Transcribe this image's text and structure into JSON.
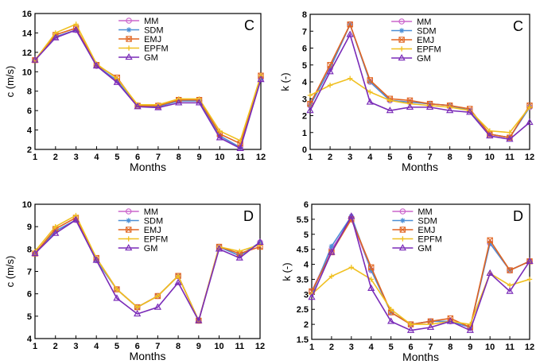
{
  "colors": {
    "MM": "#cc66cc",
    "SDM": "#4d8fd6",
    "EMJ": "#e06420",
    "EPFM": "#f0c020",
    "GM": "#7a2bb8"
  },
  "markers": {
    "MM": "circle",
    "SDM": "asterisk",
    "EMJ": "x-square",
    "EPFM": "plus",
    "GM": "triangle"
  },
  "chart_data": [
    {
      "type": "line",
      "panel_label": "C",
      "xlabel": "Months",
      "ylabel": "c (m/s)",
      "x": [
        1,
        2,
        3,
        4,
        5,
        6,
        7,
        8,
        9,
        10,
        11,
        12
      ],
      "xlim": [
        1,
        12
      ],
      "ylim": [
        2,
        16
      ],
      "yticks": [
        2,
        4,
        6,
        8,
        10,
        12,
        14,
        16
      ],
      "legend_position": "top-center",
      "series": [
        {
          "name": "MM",
          "values": [
            11.2,
            13.6,
            14.3,
            10.6,
            9.1,
            6.5,
            6.4,
            7.0,
            7.0,
            3.4,
            2.2,
            9.3
          ]
        },
        {
          "name": "SDM",
          "values": [
            11.2,
            13.6,
            14.3,
            10.6,
            9.1,
            6.5,
            6.4,
            7.0,
            7.0,
            3.4,
            2.2,
            9.3
          ]
        },
        {
          "name": "EMJ",
          "values": [
            11.2,
            13.8,
            14.5,
            10.7,
            9.4,
            6.5,
            6.5,
            7.1,
            7.1,
            3.6,
            2.6,
            9.6
          ]
        },
        {
          "name": "EPFM",
          "values": [
            11.2,
            14.0,
            14.9,
            10.8,
            9.3,
            6.6,
            6.6,
            7.2,
            7.2,
            3.9,
            2.9,
            9.6
          ]
        },
        {
          "name": "GM",
          "values": [
            11.2,
            13.5,
            14.3,
            10.6,
            8.9,
            6.4,
            6.3,
            6.8,
            6.8,
            3.2,
            2.1,
            9.2
          ]
        }
      ]
    },
    {
      "type": "line",
      "panel_label": "C",
      "xlabel": "Months",
      "ylabel": "k (-)",
      "x": [
        1,
        2,
        3,
        4,
        5,
        6,
        7,
        8,
        9,
        10,
        11,
        12
      ],
      "xlim": [
        1,
        12
      ],
      "ylim": [
        0,
        8
      ],
      "yticks": [
        0,
        1,
        2,
        3,
        4,
        5,
        6,
        7,
        8
      ],
      "legend_position": "top-center",
      "series": [
        {
          "name": "MM",
          "values": [
            2.6,
            4.8,
            7.4,
            4.0,
            2.9,
            2.8,
            2.7,
            2.6,
            2.3,
            0.9,
            0.7,
            2.5
          ]
        },
        {
          "name": "SDM",
          "values": [
            2.6,
            4.8,
            7.4,
            4.0,
            2.9,
            2.8,
            2.7,
            2.6,
            2.3,
            0.9,
            0.7,
            2.5
          ]
        },
        {
          "name": "EMJ",
          "values": [
            2.7,
            5.0,
            7.4,
            4.1,
            3.0,
            2.9,
            2.7,
            2.6,
            2.4,
            0.9,
            0.7,
            2.6
          ]
        },
        {
          "name": "EPFM",
          "values": [
            3.2,
            3.8,
            4.2,
            3.4,
            2.9,
            2.7,
            2.6,
            2.5,
            2.3,
            1.1,
            1.0,
            2.5
          ]
        },
        {
          "name": "GM",
          "values": [
            2.3,
            4.6,
            6.8,
            2.8,
            2.3,
            2.5,
            2.5,
            2.3,
            2.2,
            0.8,
            0.6,
            1.6
          ]
        }
      ]
    },
    {
      "type": "line",
      "panel_label": "D",
      "xlabel": "Months",
      "ylabel": "c (m/s)",
      "x": [
        1,
        2,
        3,
        4,
        5,
        6,
        7,
        8,
        9,
        10,
        11,
        12
      ],
      "xlim": [
        1,
        12
      ],
      "ylim": [
        4,
        10
      ],
      "yticks": [
        4,
        5,
        6,
        7,
        8,
        9,
        10
      ],
      "legend_position": "top-center",
      "series": [
        {
          "name": "MM",
          "values": [
            7.8,
            8.8,
            9.3,
            7.5,
            6.2,
            5.4,
            5.9,
            6.8,
            4.8,
            8.1,
            7.7,
            8.3
          ]
        },
        {
          "name": "SDM",
          "values": [
            7.8,
            8.8,
            9.3,
            7.5,
            6.2,
            5.4,
            5.9,
            6.8,
            4.8,
            8.1,
            7.7,
            8.3
          ]
        },
        {
          "name": "EMJ",
          "values": [
            7.8,
            8.9,
            9.4,
            7.6,
            6.2,
            5.4,
            5.9,
            6.8,
            4.8,
            8.1,
            7.8,
            8.1
          ]
        },
        {
          "name": "EPFM",
          "values": [
            7.9,
            9.0,
            9.5,
            7.6,
            6.2,
            5.4,
            5.9,
            6.8,
            4.8,
            8.1,
            7.9,
            8.2
          ]
        },
        {
          "name": "GM",
          "values": [
            7.8,
            8.7,
            9.3,
            7.5,
            5.8,
            5.1,
            5.4,
            6.5,
            4.8,
            8.0,
            7.6,
            8.3
          ]
        }
      ]
    },
    {
      "type": "line",
      "panel_label": "D",
      "xlabel": "Months",
      "ylabel": "k (-)",
      "x": [
        1,
        2,
        3,
        4,
        5,
        6,
        7,
        8,
        9,
        10,
        11,
        12
      ],
      "xlim": [
        1,
        12
      ],
      "ylim": [
        1.5,
        6
      ],
      "yticks": [
        1.5,
        2,
        2.5,
        3,
        3.5,
        4,
        4.5,
        5,
        5.5,
        6
      ],
      "legend_position": "top-center",
      "series": [
        {
          "name": "MM",
          "values": [
            3.1,
            4.5,
            5.5,
            3.8,
            2.4,
            2.0,
            2.1,
            2.1,
            1.9,
            4.7,
            3.8,
            4.1
          ]
        },
        {
          "name": "SDM",
          "values": [
            3.0,
            4.6,
            5.6,
            3.8,
            2.4,
            2.0,
            2.1,
            2.1,
            1.9,
            4.7,
            3.8,
            4.1
          ]
        },
        {
          "name": "EMJ",
          "values": [
            3.1,
            4.4,
            5.5,
            3.9,
            2.4,
            2.0,
            2.1,
            2.2,
            1.9,
            4.8,
            3.8,
            4.1
          ]
        },
        {
          "name": "EPFM",
          "values": [
            3.0,
            3.6,
            3.9,
            3.5,
            2.5,
            2.0,
            2.0,
            2.1,
            2.0,
            3.7,
            3.3,
            3.5
          ]
        },
        {
          "name": "GM",
          "values": [
            2.9,
            4.4,
            5.6,
            3.2,
            2.1,
            1.8,
            1.9,
            2.1,
            1.8,
            3.7,
            3.1,
            4.1
          ]
        }
      ]
    }
  ]
}
